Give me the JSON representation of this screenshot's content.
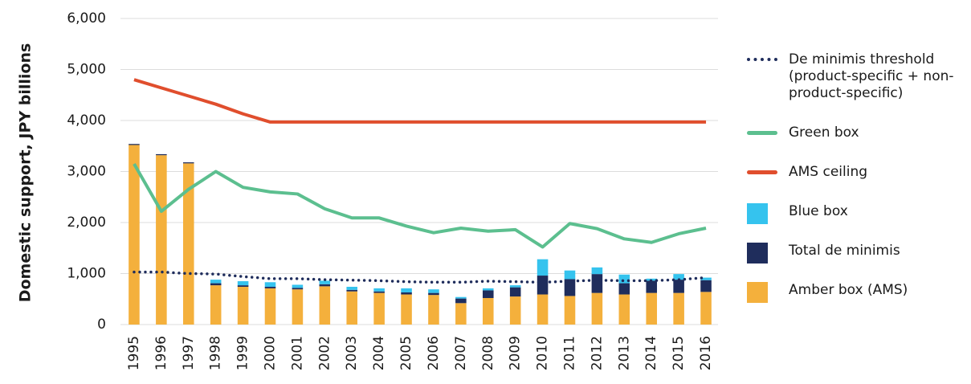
{
  "chart_data": {
    "type": "bar",
    "y_label": "Domestic support, JPY billions",
    "categories": [
      "1995",
      "1996",
      "1997",
      "1998",
      "1999",
      "2000",
      "2001",
      "2002",
      "2003",
      "2004",
      "2005",
      "2006",
      "2007",
      "2008",
      "2009",
      "2010",
      "2011",
      "2012",
      "2013",
      "2014",
      "2015",
      "2016"
    ],
    "ylim": [
      0,
      6000
    ],
    "yticks": [
      0,
      {
        "value": 1000,
        "label": "1,000"
      },
      {
        "value": 2000,
        "label": "2,000"
      },
      {
        "value": 3000,
        "label": "3,000"
      },
      {
        "value": 4000,
        "label": "4,000"
      },
      {
        "value": 5000,
        "label": "5,000"
      },
      {
        "value": 6000,
        "label": "6,000"
      }
    ],
    "grid": true,
    "legend": "right",
    "series": [
      {
        "name": "De minimis threshold (product-specific + non-product-specific)",
        "type": "line",
        "style": "dotted",
        "color": "#1f2d5c",
        "values": [
          1030,
          1030,
          1000,
          990,
          940,
          900,
          900,
          880,
          870,
          860,
          840,
          830,
          830,
          850,
          840,
          830,
          850,
          870,
          860,
          860,
          880,
          920
        ]
      },
      {
        "name": "Green box",
        "type": "line",
        "style": "solid",
        "color": "#5cbf8f",
        "values": [
          3150,
          2220,
          2650,
          3000,
          2690,
          2600,
          2560,
          2270,
          2090,
          2090,
          1930,
          1800,
          1890,
          1830,
          1860,
          1520,
          1980,
          1880,
          1680,
          1610,
          1780,
          1890
        ]
      },
      {
        "name": "AMS ceiling",
        "type": "line",
        "style": "solid",
        "color": "#e04e2d",
        "values": [
          4800,
          4640,
          4480,
          4320,
          4130,
          3970,
          3970,
          3970,
          3970,
          3970,
          3970,
          3970,
          3970,
          3970,
          3970,
          3970,
          3970,
          3970,
          3970,
          3970,
          3970,
          3970
        ]
      },
      {
        "name": "Blue box",
        "type": "bar",
        "color": "#35c3ee",
        "values": [
          0,
          0,
          0,
          70,
          80,
          90,
          60,
          70,
          60,
          60,
          80,
          70,
          30,
          40,
          40,
          320,
          170,
          130,
          170,
          40,
          110,
          50
        ]
      },
      {
        "name": "Total de minimis",
        "type": "bar",
        "color": "#1f2d5c",
        "values": [
          20,
          20,
          20,
          40,
          30,
          30,
          30,
          40,
          30,
          30,
          40,
          40,
          90,
          150,
          180,
          370,
          330,
          370,
          220,
          240,
          260,
          230
        ]
      },
      {
        "name": "Amber box (AMS)",
        "type": "bar",
        "color": "#f4b03c",
        "values": [
          3520,
          3320,
          3160,
          770,
          740,
          710,
          690,
          750,
          650,
          620,
          590,
          580,
          420,
          520,
          550,
          590,
          560,
          620,
          590,
          620,
          620,
          640
        ]
      }
    ]
  }
}
